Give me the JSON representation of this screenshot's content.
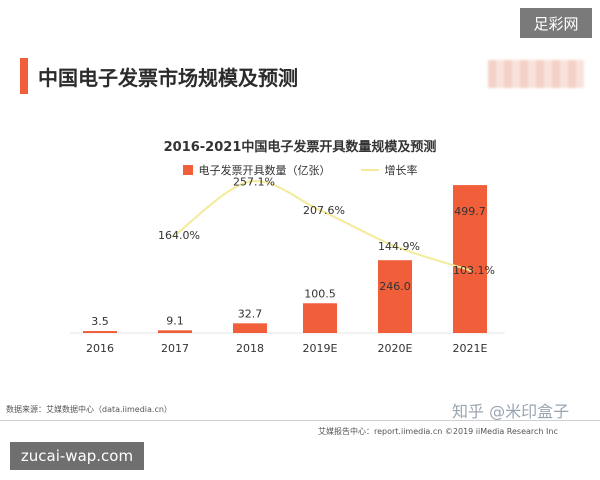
{
  "watermark_top": "足彩网",
  "page_title": "中国电子发票市场规模及预测",
  "chart_data": {
    "type": "bar",
    "title": "2016-2021中国电子发票开具数量规模及预测",
    "categories": [
      "2016",
      "2017",
      "2018",
      "2019E",
      "2020E",
      "2021E"
    ],
    "series": [
      {
        "name": "电子发票开具数量（亿张）",
        "type": "bar",
        "values": [
          3.5,
          9.1,
          32.7,
          100.5,
          246.0,
          499.7
        ],
        "labels": [
          "3.5",
          "9.1",
          "32.7",
          "100.5",
          "246.0",
          "499.7"
        ]
      },
      {
        "name": "增长率",
        "type": "line",
        "values": [
          null,
          164.0,
          257.1,
          207.6,
          144.9,
          103.1
        ],
        "labels": [
          "",
          "164.0%",
          "257.1%",
          "207.6%",
          "144.9%",
          "103.1%"
        ]
      }
    ],
    "legend_position": "top",
    "grid": false,
    "colors": {
      "bar": "#f05f3a",
      "line": "#f3eb9a"
    }
  },
  "source_left": "数据来源：艾媒数据中心（data.iimedia.cn）",
  "zhihu_watermark": "知乎 @米印盒子",
  "source_right": "艾媒报告中心：report.iimedia.cn ©2019  iiMedia Research Inc",
  "footer_watermark": "zucai-wap.com"
}
